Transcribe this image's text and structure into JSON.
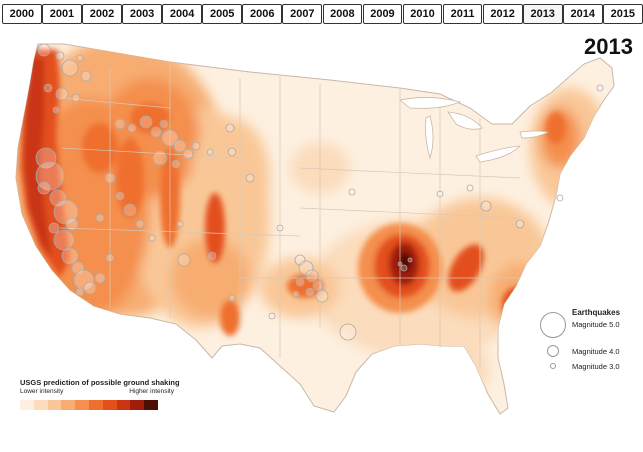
{
  "years": [
    {
      "label": "2000"
    },
    {
      "label": "2001"
    },
    {
      "label": "2002"
    },
    {
      "label": "2003"
    },
    {
      "label": "2004"
    },
    {
      "label": "2005"
    },
    {
      "label": "2006"
    },
    {
      "label": "2007"
    },
    {
      "label": "2008"
    },
    {
      "label": "2009"
    },
    {
      "label": "2010"
    },
    {
      "label": "2011"
    },
    {
      "label": "2012"
    },
    {
      "label": "2013"
    },
    {
      "label": "2014"
    },
    {
      "label": "2015"
    }
  ],
  "selected_year": "2013",
  "map_title": "2013",
  "earthquake_legend": {
    "title": "Earthquakes",
    "items": [
      {
        "label": "Magnitude 5.0"
      },
      {
        "label": "Magnitude 4.0"
      },
      {
        "label": "Magnitude 3.0"
      }
    ]
  },
  "shaking_legend": {
    "title": "USGS prediction of possible ground shaking",
    "low_label": "Lower intensity",
    "high_label": "Higher intensity",
    "colors": [
      "#fdf0e0",
      "#fbdcbc",
      "#f9c797",
      "#f7ad72",
      "#f48f4e",
      "#ef6f2f",
      "#e3501c",
      "#c93412",
      "#a11d0b",
      "#4e0d05"
    ]
  }
}
